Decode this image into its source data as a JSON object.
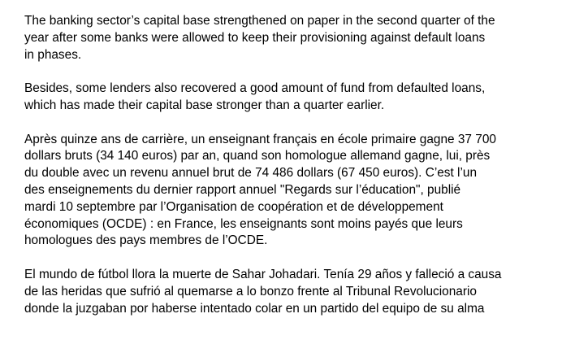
{
  "document": {
    "paragraphs": [
      {
        "lines": [
          "The banking sector’s capital base strengthened on paper in the second quarter of the",
          "year after some banks were allowed to keep their provisioning against default loans",
          "in phases."
        ]
      },
      {
        "lines": [
          "Besides, some lenders also recovered a good amount of fund from defaulted loans,",
          "which has made their capital base stronger than a quarter earlier."
        ]
      },
      {
        "lines": [
          "Après quinze ans de carrière, un enseignant français en école primaire gagne 37 700",
          "dollars bruts (34 140 euros) par an, quand son homologue allemand gagne, lui, près",
          "du double avec un revenu annuel brut de 74 486 dollars (67 450 euros). C’est l’un",
          "des enseignements du dernier rapport annuel \"Regards sur l’éducation\", publié",
          "mardi 10 septembre par l’Organisation de coopération et de développement",
          "économiques (OCDE) : en France, les enseignants sont moins payés que leurs",
          "homologues des pays membres de l’OCDE."
        ]
      },
      {
        "lines": [
          "El mundo de fútbol llora la muerte de Sahar Johadari. Tenía 29 años y falleció a causa",
          "de las heridas que sufrió al quemarse a lo bonzo frente al Tribunal Revolucionario",
          "donde la juzgaban por haberse intentado colar en un partido del equipo de su alma"
        ]
      }
    ]
  }
}
